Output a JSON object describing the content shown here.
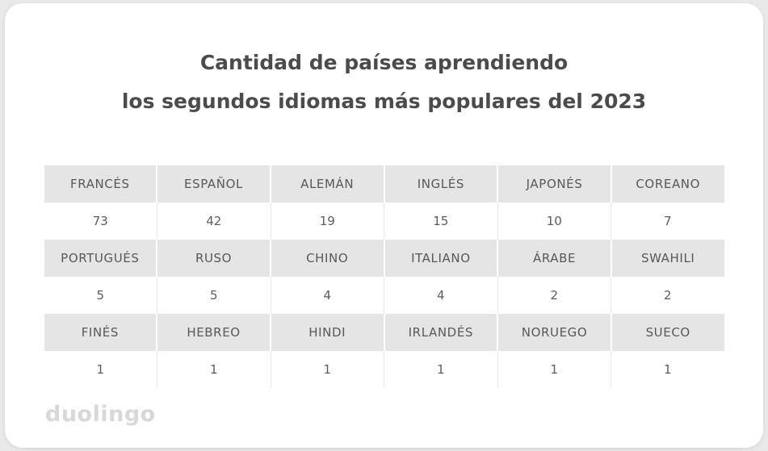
{
  "title": {
    "line1": "Cantidad de países aprendiendo",
    "line2": "los segundos idiomas más populares del 2023"
  },
  "logo": {
    "text": "duolingo"
  },
  "colors": {
    "page_background": "#e9e9e9",
    "card_background": "#ffffff",
    "header_row_background": "#e5e5e5",
    "text": "#58585a",
    "logo": "#d8d8d8"
  },
  "chart_data": {
    "type": "table",
    "title": "Cantidad de países aprendiendo los segundos idiomas más populares del 2023",
    "columns_per_row": 6,
    "layout": "alternating label row (gray) and value row (white), 3 pairs of rows",
    "entries": [
      {
        "language": "FRANCÉS",
        "countries": 73
      },
      {
        "language": "ESPAÑOL",
        "countries": 42
      },
      {
        "language": "ALEMÁN",
        "countries": 19
      },
      {
        "language": "INGLÉS",
        "countries": 15
      },
      {
        "language": "JAPONÉS",
        "countries": 10
      },
      {
        "language": "COREANO",
        "countries": 7
      },
      {
        "language": "PORTUGUÉS",
        "countries": 5
      },
      {
        "language": "RUSO",
        "countries": 5
      },
      {
        "language": "CHINO",
        "countries": 4
      },
      {
        "language": "ITALIANO",
        "countries": 4
      },
      {
        "language": "ÁRABE",
        "countries": 2
      },
      {
        "language": "SWAHILI",
        "countries": 2
      },
      {
        "language": "FINÉS",
        "countries": 1
      },
      {
        "language": "HEBREO",
        "countries": 1
      },
      {
        "language": "HINDI",
        "countries": 1
      },
      {
        "language": "IRLANDÉS",
        "countries": 1
      },
      {
        "language": "NORUEGO",
        "countries": 1
      },
      {
        "language": "SUECO",
        "countries": 1
      }
    ]
  }
}
